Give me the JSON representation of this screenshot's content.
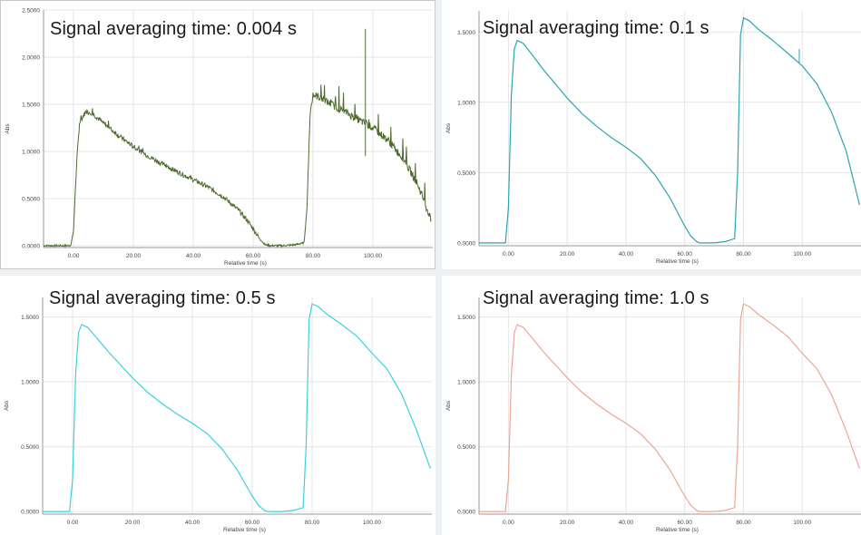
{
  "chart_data": [
    {
      "type": "line",
      "title": "Signal averaging time: 0.004 s",
      "xlabel": "Relative time (s)",
      "ylabel": "Abs",
      "xlim": [
        -10,
        120
      ],
      "ylim": [
        -0.02,
        2.5
      ],
      "xticks": [
        "0.00",
        "20.00",
        "40.00",
        "60.00",
        "80.00",
        "100.00"
      ],
      "yticks": [
        "0.0000",
        "0.5000",
        "1.0000",
        "1.5000",
        "2.0000",
        "2.5000"
      ],
      "grid": true,
      "color": "#4d6b2d",
      "noisy": true,
      "series": [
        {
          "x": [
            -10,
            -1,
            0,
            1,
            2,
            4,
            6,
            10,
            15,
            20,
            25,
            30,
            35,
            40,
            45,
            50,
            55,
            58,
            60,
            62,
            64,
            66,
            70,
            74,
            77,
            78,
            79,
            80,
            82,
            85,
            90,
            95,
            100,
            105,
            110,
            115,
            119.5
          ],
          "y": [
            0.0,
            0.0,
            0.15,
            0.85,
            1.3,
            1.42,
            1.41,
            1.3,
            1.17,
            1.05,
            0.95,
            0.86,
            0.78,
            0.7,
            0.62,
            0.52,
            0.38,
            0.27,
            0.18,
            0.08,
            0.01,
            0.0,
            0.0,
            0.01,
            0.03,
            0.4,
            1.4,
            1.6,
            1.58,
            1.52,
            1.43,
            1.34,
            1.25,
            1.12,
            0.93,
            0.65,
            0.27
          ]
        }
      ]
    },
    {
      "type": "line",
      "title": "Signal averaging time: 0.1 s",
      "xlabel": "Relative time (s)",
      "ylabel": "Abs",
      "xlim": [
        -10,
        120
      ],
      "ylim": [
        -0.02,
        1.65
      ],
      "xticks": [
        "0.00",
        "20.00",
        "40.00",
        "60.00",
        "80.00",
        "100.00"
      ],
      "yticks": [
        "0.0000",
        "0.5000",
        "1.0000",
        "1.5000"
      ],
      "grid": true,
      "color": "#2aa5b0",
      "noisy": false,
      "series": [
        {
          "x": [
            -10,
            -1,
            0,
            1,
            2,
            3,
            5,
            8,
            12,
            16,
            20,
            25,
            30,
            35,
            40,
            45,
            50,
            55,
            58,
            60,
            62,
            64,
            65,
            70,
            74,
            77,
            78,
            79,
            80,
            82,
            85,
            90,
            95,
            100,
            105,
            110,
            115,
            119.5
          ],
          "y": [
            0.0,
            0.0,
            0.25,
            1.05,
            1.38,
            1.44,
            1.42,
            1.34,
            1.23,
            1.13,
            1.03,
            0.92,
            0.83,
            0.75,
            0.68,
            0.6,
            0.48,
            0.32,
            0.2,
            0.12,
            0.05,
            0.01,
            0.0,
            0.0,
            0.01,
            0.03,
            0.5,
            1.48,
            1.6,
            1.58,
            1.52,
            1.44,
            1.35,
            1.26,
            1.13,
            0.93,
            0.65,
            0.27
          ]
        }
      ]
    },
    {
      "type": "line",
      "title": "Signal averaging time: 0.5 s",
      "xlabel": "Relative time (s)",
      "ylabel": "Abs",
      "xlim": [
        -10,
        120
      ],
      "ylim": [
        -0.02,
        1.65
      ],
      "xticks": [
        "0.00",
        "20.00",
        "40.00",
        "60.00",
        "80.00",
        "100.00"
      ],
      "yticks": [
        "0.0000",
        "0.5000",
        "1.0000",
        "1.5000"
      ],
      "grid": true,
      "color": "#3fd0dc",
      "noisy": false,
      "series": [
        {
          "x": [
            -10,
            -1,
            0,
            1,
            2,
            3,
            5,
            8,
            12,
            16,
            20,
            25,
            30,
            35,
            40,
            45,
            50,
            55,
            58,
            60,
            62,
            64,
            65,
            70,
            74,
            77,
            78,
            79,
            80,
            82,
            85,
            90,
            95,
            100,
            105,
            110,
            115,
            119.5
          ],
          "y": [
            0.0,
            0.0,
            0.25,
            1.05,
            1.38,
            1.44,
            1.42,
            1.34,
            1.23,
            1.13,
            1.03,
            0.92,
            0.83,
            0.75,
            0.68,
            0.6,
            0.48,
            0.32,
            0.2,
            0.12,
            0.05,
            0.01,
            0.0,
            0.0,
            0.01,
            0.03,
            0.5,
            1.48,
            1.6,
            1.58,
            1.52,
            1.44,
            1.35,
            1.22,
            1.1,
            0.9,
            0.62,
            0.33
          ]
        }
      ]
    },
    {
      "type": "line",
      "title": "Signal averaging time: 1.0 s",
      "xlabel": "Relative time (s)",
      "ylabel": "Abs",
      "xlim": [
        -10,
        120
      ],
      "ylim": [
        -0.02,
        1.65
      ],
      "xticks": [
        "0.00",
        "20.00",
        "40.00",
        "60.00",
        "80.00",
        "100.00"
      ],
      "yticks": [
        "0.0000",
        "0.5000",
        "1.0000",
        "1.5000"
      ],
      "grid": true,
      "color": "#eea592",
      "noisy": false,
      "series": [
        {
          "x": [
            -10,
            -1,
            0,
            1,
            2,
            3,
            5,
            8,
            12,
            16,
            20,
            25,
            30,
            35,
            40,
            45,
            50,
            55,
            58,
            60,
            62,
            64,
            65,
            70,
            74,
            77,
            78,
            79,
            80,
            82,
            85,
            90,
            95,
            100,
            105,
            110,
            115,
            119.5
          ],
          "y": [
            0.0,
            0.0,
            0.25,
            1.05,
            1.38,
            1.44,
            1.42,
            1.34,
            1.23,
            1.13,
            1.03,
            0.92,
            0.83,
            0.75,
            0.68,
            0.6,
            0.48,
            0.32,
            0.2,
            0.12,
            0.05,
            0.01,
            0.0,
            0.0,
            0.01,
            0.03,
            0.5,
            1.48,
            1.6,
            1.58,
            1.52,
            1.44,
            1.35,
            1.22,
            1.1,
            0.9,
            0.62,
            0.33
          ]
        }
      ]
    }
  ]
}
